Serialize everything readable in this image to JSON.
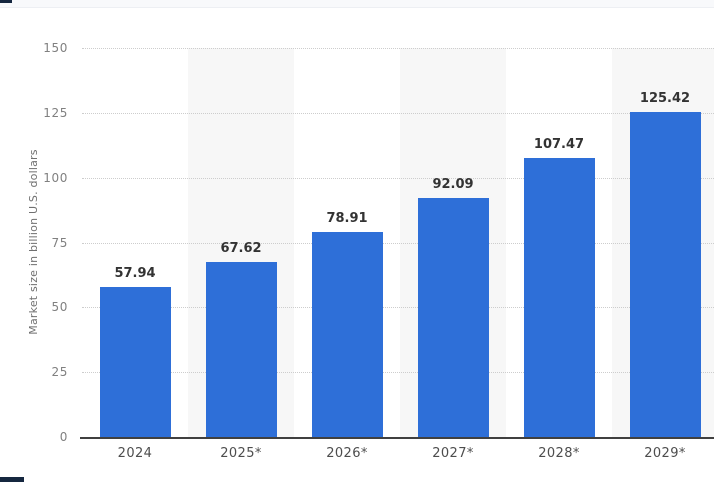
{
  "page": {
    "top_strip_color": "#f8f9fb",
    "edge_fragment_color": "#15273f"
  },
  "chart_data": {
    "type": "bar",
    "title": "",
    "categories": [
      "2024",
      "2025*",
      "2026*",
      "2027*",
      "2028*",
      "2029*"
    ],
    "values": [
      57.94,
      67.62,
      78.91,
      92.09,
      107.47,
      125.42
    ],
    "data_labels": [
      "57.94",
      "67.62",
      "78.91",
      "92.09",
      "107.47",
      "125.42"
    ],
    "xlabel": "",
    "ylabel": "Market size in billion U.S. dollars",
    "ylim": [
      0,
      150
    ],
    "yticks": [
      0,
      25,
      50,
      75,
      100,
      125,
      150
    ],
    "grid": "horizontal-dotted",
    "legend": "none",
    "striped_columns": [
      1,
      3,
      5
    ],
    "colors": {
      "bar": "#2e6fd8",
      "stripe": "#f7f7f7",
      "gridline": "#cdcdcd",
      "axis_line": "#404040",
      "tick_label": "#808080",
      "category_label": "#4d4d4d",
      "value_label": "#333333",
      "axis_title": "#707070"
    }
  }
}
